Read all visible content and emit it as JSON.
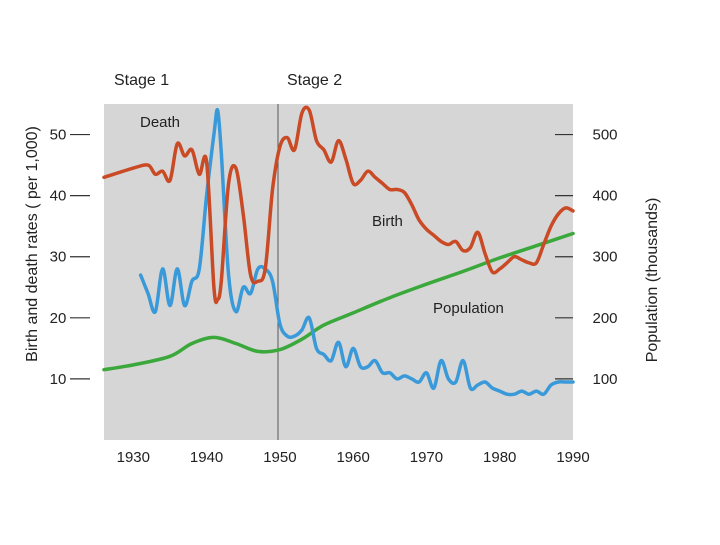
{
  "chart_data": {
    "type": "line",
    "stages": [
      "Stage 1",
      "Stage 2"
    ],
    "stage_boundary_year": 1950,
    "x_axis": {
      "min": 1926,
      "max": 1990,
      "ticks": [
        1930,
        1940,
        1950,
        1960,
        1970,
        1980,
        1990
      ],
      "tick_labels": [
        "1930",
        "1940",
        "1950",
        "1960",
        "1970",
        "1980",
        "1990"
      ]
    },
    "y_left": {
      "label": "Birth and death rates ( per 1,000)",
      "min": 0,
      "max": 55,
      "ticks": [
        10,
        20,
        30,
        40,
        50
      ],
      "tick_labels": [
        "10",
        "20",
        "30",
        "40",
        "50"
      ]
    },
    "y_right": {
      "label": "Population (thousands)",
      "min": 0,
      "max": 550,
      "ticks": [
        100,
        200,
        300,
        400,
        500
      ],
      "tick_labels": [
        "100",
        "200",
        "300",
        "400",
        "500"
      ]
    },
    "grid": false,
    "colors": {
      "background": "#d6d6d6",
      "birth": "#c94a24",
      "death": "#3a9ad9",
      "population": "#3aa83a"
    },
    "series": [
      {
        "name": "Birth",
        "axis": "left",
        "color_key": "birth",
        "x": [
          1926,
          1930,
          1932,
          1933,
          1934,
          1935,
          1936,
          1937,
          1938,
          1939,
          1940,
          1941,
          1941.5,
          1942,
          1943,
          1944,
          1945,
          1946,
          1947,
          1948,
          1949,
          1950,
          1951,
          1952,
          1953,
          1954,
          1955,
          1956,
          1957,
          1958,
          1959,
          1960,
          1961,
          1962,
          1963,
          1964,
          1965,
          1966,
          1967,
          1968,
          1969,
          1970,
          1971,
          1972,
          1973,
          1974,
          1975,
          1976,
          1977,
          1978,
          1979,
          1980,
          1981,
          1982,
          1983,
          1984,
          1985,
          1986,
          1987,
          1988,
          1989,
          1990
        ],
        "values": [
          43,
          44.5,
          45,
          43.5,
          44,
          42.5,
          48.5,
          46.5,
          47.5,
          43.5,
          45.5,
          25,
          23,
          26,
          42,
          44.5,
          37,
          27,
          26,
          28,
          41,
          48,
          49.5,
          47.5,
          53.5,
          54,
          49,
          47.5,
          45.5,
          49,
          46,
          42,
          42.5,
          44,
          43,
          42,
          41,
          41,
          40.5,
          38.5,
          36,
          34.5,
          33.5,
          32.5,
          32,
          32.5,
          31,
          31.5,
          34,
          30.5,
          27.5,
          28,
          29,
          30,
          29.5,
          29,
          29,
          32,
          35,
          37,
          38,
          37.5
        ]
      },
      {
        "name": "Death",
        "axis": "left",
        "color_key": "death",
        "x": [
          1931,
          1932,
          1933,
          1934,
          1935,
          1936,
          1937,
          1938,
          1939,
          1940,
          1941,
          1941.5,
          1942,
          1943,
          1944,
          1945,
          1946,
          1947,
          1948,
          1949,
          1950,
          1951,
          1952,
          1953,
          1954,
          1955,
          1956,
          1957,
          1958,
          1959,
          1960,
          1961,
          1962,
          1963,
          1964,
          1965,
          1966,
          1967,
          1968,
          1969,
          1970,
          1971,
          1972,
          1973,
          1974,
          1975,
          1976,
          1977,
          1978,
          1979,
          1980,
          1981,
          1982,
          1983,
          1984,
          1985,
          1986,
          1987,
          1988,
          1989,
          1990
        ],
        "values": [
          27,
          24,
          21,
          28,
          22,
          28,
          22,
          26,
          28,
          40,
          50,
          54,
          47,
          27,
          21,
          25,
          24,
          28,
          28,
          26,
          19,
          17,
          17,
          18,
          20,
          15,
          14,
          13,
          16,
          12,
          15,
          12,
          12,
          13,
          11,
          11,
          10,
          10.5,
          10,
          9.5,
          11,
          8.5,
          13,
          10,
          9.5,
          13,
          8.5,
          9,
          9.5,
          8.5,
          8,
          7.5,
          7.5,
          8,
          7.5,
          8,
          7.5,
          9,
          9.5,
          9.5,
          9.5
        ]
      },
      {
        "name": "Population",
        "axis": "right",
        "color_key": "population",
        "x": [
          1926,
          1930,
          1935,
          1938,
          1941,
          1944,
          1947,
          1950,
          1953,
          1956,
          1960,
          1965,
          1970,
          1975,
          1980,
          1985,
          1990
        ],
        "values": [
          115,
          123,
          137,
          158,
          168,
          158,
          145,
          148,
          165,
          188,
          208,
          233,
          255,
          276,
          298,
          318,
          338
        ]
      }
    ]
  }
}
